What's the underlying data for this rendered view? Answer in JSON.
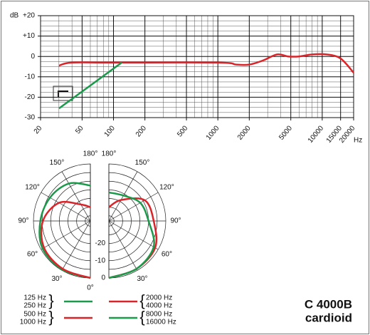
{
  "chart_data": [
    {
      "type": "line",
      "y_label": "dB",
      "x_label": "Hz",
      "xscale": "log",
      "xlim": [
        20,
        20000
      ],
      "ylim": [
        -30,
        20
      ],
      "xticks": [
        20,
        50,
        100,
        200,
        500,
        1000,
        2000,
        5000,
        10000,
        15000,
        20000
      ],
      "yticks": [
        {
          "value": 20,
          "label": "+20"
        },
        {
          "value": 10,
          "label": "+10"
        },
        0,
        -10,
        -20,
        -30
      ],
      "grid": true,
      "series": [
        {
          "color": "#d9252a",
          "x": [
            30,
            40,
            100,
            1000,
            1500,
            2000,
            2700,
            3700,
            4700,
            6000,
            8000,
            11000,
            15000,
            20000
          ],
          "values": [
            -4.5,
            -3,
            -3,
            -3,
            -4,
            -4,
            -2,
            1,
            0,
            0,
            1,
            1,
            -1,
            -8
          ]
        },
        {
          "color": "#1a9a4a",
          "x": [
            30,
            120
          ],
          "values": [
            -25.5,
            -3
          ]
        }
      ]
    },
    {
      "type": "polar",
      "angles": [
        0,
        30,
        60,
        90,
        120,
        150,
        180
      ],
      "angle_ticks": [
        {
          "value": 0,
          "label": "0°"
        },
        {
          "value": 30,
          "label": "30°"
        },
        {
          "value": 60,
          "label": "60°"
        },
        {
          "value": 90,
          "label": "90°"
        },
        {
          "value": 120,
          "label": "120°"
        },
        {
          "value": 150,
          "label": "150°"
        },
        {
          "value": 180,
          "label": "180°"
        }
      ],
      "rlim": [
        -33,
        0
      ],
      "rticks": [
        -20,
        -10,
        0
      ],
      "rminor": [
        -5,
        -15,
        -25,
        -30
      ],
      "series": [
        {
          "names": [
            "125 Hz",
            "250 Hz"
          ],
          "side": "left",
          "color": "#1a9a4a",
          "values": [
            0,
            -0.5,
            -1,
            -4,
            -6,
            -8,
            -12.5
          ]
        },
        {
          "names": [
            "500 Hz",
            "1000 Hz"
          ],
          "side": "left",
          "color": "#d9252a",
          "values": [
            0,
            -1,
            -2,
            -5.5,
            -12,
            -22,
            -25
          ]
        },
        {
          "names": [
            "2000 Hz",
            "4000 Hz"
          ],
          "side": "right",
          "color": "#d9252a",
          "values": [
            0,
            -1,
            -2,
            -7,
            -9,
            -19,
            -25
          ]
        },
        {
          "names": [
            "8000 Hz",
            "16000 Hz"
          ],
          "side": "right",
          "color": "#1a9a4a",
          "values": [
            0,
            -1,
            -3,
            -10,
            -12,
            -16,
            -16.5
          ]
        }
      ]
    }
  ],
  "product": {
    "model": "C 4000B",
    "pattern": "cardioid"
  }
}
